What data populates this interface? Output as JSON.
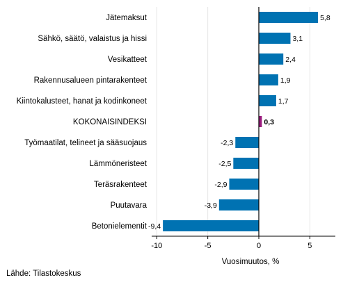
{
  "chart_data": {
    "type": "bar",
    "orientation": "horizontal",
    "categories": [
      "Jätemaksut",
      "Sähkö, säätö, valaistus ja hissi",
      "Vesikatteet",
      "Rakennusalueen pintarakenteet",
      "Kiintokalusteet, hanat ja kodinkoneet",
      "KOKONAISINDEKSI",
      "Työmaatilat, telineet ja sääsuojaus",
      "Lämmöneristeet",
      "Teräsrakenteet",
      "Puutavara",
      "Betonielementit"
    ],
    "values": [
      5.8,
      3.1,
      2.4,
      1.9,
      1.7,
      0.3,
      -2.3,
      -2.5,
      -2.9,
      -3.9,
      -9.4
    ],
    "value_labels": [
      "5,8",
      "3,1",
      "2,4",
      "1,9",
      "1,7",
      "0,3",
      "-2,3",
      "-2,5",
      "-2,9",
      "-3,9",
      "-9,4"
    ],
    "highlight_index": 5,
    "xlabel": "Vuosimuutos, %",
    "xlim": [
      -10.5,
      7.5
    ],
    "xticks": [
      -10,
      -5,
      0,
      5
    ],
    "xtick_labels": [
      "-10",
      "-5",
      "0",
      "5"
    ],
    "grid": "vertical",
    "colors": {
      "bar": "#0072b2",
      "highlight": "#9b1b7e",
      "grid": "#e6e6e6",
      "zero_line": "#000000"
    }
  },
  "footer": {
    "source": "Lähde: Tilastokeskus"
  }
}
